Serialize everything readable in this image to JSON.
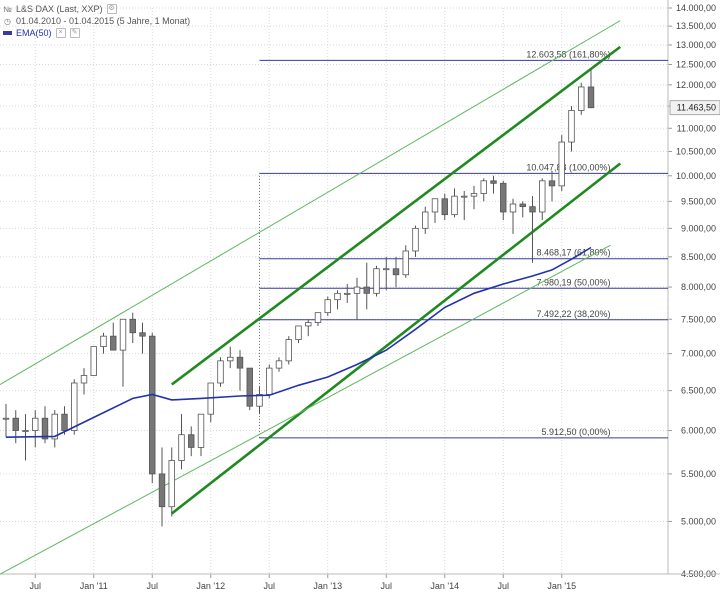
{
  "legend": {
    "instrument": "L&S DAX (Last, XXP)",
    "period": "01.04.2010 - 01.04.2015 (5 Jahre, 1 Monat)",
    "indicator": "EMA(50)",
    "symbol_icon": "instrument-icon",
    "calendar_icon": "calendar-icon",
    "settings_icon": "gear-icon",
    "close_icon": "close-icon",
    "edit_icon": "pencil-icon"
  },
  "colors": {
    "candle_up_fill": "#ffffff",
    "candle_down_fill": "#777777",
    "candle_stroke": "#555555",
    "ema": "#2233aa",
    "trend_thick": "#1f8a1f",
    "trend_thin": "#5cb85c",
    "fib_lines": "#3a3a9a",
    "grid": "#d9d9d9",
    "price_tag_bg": "#f2f2f2"
  },
  "chart_data": {
    "type": "candlestick",
    "scale": "log",
    "ylim": [
      4500,
      14000
    ],
    "y_ticks": [
      4500,
      5000,
      5500,
      6000,
      6500,
      7000,
      7500,
      8000,
      8500,
      9000,
      9500,
      10000,
      10500,
      11000,
      11500,
      12000,
      12500,
      13000,
      13500,
      14000
    ],
    "y_tick_labels": [
      "4.500,00",
      "5.000,00",
      "5.500,00",
      "6.000,00",
      "6.500,00",
      "7.000,00",
      "7.500,00",
      "8.000,00",
      "8.500,00",
      "9.000,00",
      "9.500,00",
      "10.000,00",
      "10.500,00",
      "11.000,00",
      "11.500,00",
      "12.000,00",
      "12.500,00",
      "13.000,00",
      "13.500,00",
      "14.000,00"
    ],
    "x_ticks": [
      {
        "label": "Jul",
        "index": 3
      },
      {
        "label": "Jan '11",
        "index": 9
      },
      {
        "label": "Jul",
        "index": 15
      },
      {
        "label": "Jan '12",
        "index": 21
      },
      {
        "label": "Jul",
        "index": 27
      },
      {
        "label": "Jan '13",
        "index": 33
      },
      {
        "label": "Jul",
        "index": 39
      },
      {
        "label": "Jan '14",
        "index": 45
      },
      {
        "label": "Jul",
        "index": 51
      },
      {
        "label": "Jan '15",
        "index": 57
      }
    ],
    "candles": [
      {
        "o": 6150,
        "h": 6330,
        "l": 5920,
        "c": 6150
      },
      {
        "o": 6150,
        "h": 6250,
        "l": 5850,
        "c": 6000
      },
      {
        "o": 6000,
        "h": 6200,
        "l": 5650,
        "c": 6000
      },
      {
        "o": 6000,
        "h": 6250,
        "l": 5800,
        "c": 6150
      },
      {
        "o": 6150,
        "h": 6300,
        "l": 5850,
        "c": 5900
      },
      {
        "o": 5900,
        "h": 6250,
        "l": 5800,
        "c": 6200
      },
      {
        "o": 6200,
        "h": 6300,
        "l": 5950,
        "c": 6000
      },
      {
        "o": 6000,
        "h": 6650,
        "l": 5950,
        "c": 6600
      },
      {
        "o": 6600,
        "h": 6800,
        "l": 6450,
        "c": 6700
      },
      {
        "o": 6700,
        "h": 7100,
        "l": 6750,
        "c": 7100
      },
      {
        "o": 7100,
        "h": 7300,
        "l": 7000,
        "c": 7250
      },
      {
        "o": 7250,
        "h": 7450,
        "l": 7050,
        "c": 7050
      },
      {
        "o": 7050,
        "h": 7500,
        "l": 6550,
        "c": 7500
      },
      {
        "o": 7500,
        "h": 7600,
        "l": 7150,
        "c": 7300
      },
      {
        "o": 7300,
        "h": 7450,
        "l": 7000,
        "c": 7250
      },
      {
        "o": 7250,
        "h": 7300,
        "l": 5400,
        "c": 5500
      },
      {
        "o": 5500,
        "h": 5800,
        "l": 4950,
        "c": 5150
      },
      {
        "o": 5150,
        "h": 5800,
        "l": 5050,
        "c": 5650
      },
      {
        "o": 5650,
        "h": 6200,
        "l": 5550,
        "c": 5950
      },
      {
        "o": 5950,
        "h": 6050,
        "l": 5700,
        "c": 5800
      },
      {
        "o": 5800,
        "h": 6200,
        "l": 5700,
        "c": 6200
      },
      {
        "o": 6200,
        "h": 6600,
        "l": 6100,
        "c": 6600
      },
      {
        "o": 6600,
        "h": 6950,
        "l": 6550,
        "c": 6900
      },
      {
        "o": 6900,
        "h": 7100,
        "l": 6800,
        "c": 6950
      },
      {
        "o": 6950,
        "h": 7050,
        "l": 6500,
        "c": 6800
      },
      {
        "o": 6800,
        "h": 6800,
        "l": 6250,
        "c": 6300
      },
      {
        "o": 6300,
        "h": 6550,
        "l": 6200,
        "c": 6450
      },
      {
        "o": 6450,
        "h": 6850,
        "l": 6400,
        "c": 6800
      },
      {
        "o": 6800,
        "h": 6950,
        "l": 6750,
        "c": 6900
      },
      {
        "o": 6900,
        "h": 7250,
        "l": 6850,
        "c": 7200
      },
      {
        "o": 7200,
        "h": 7400,
        "l": 7150,
        "c": 7400
      },
      {
        "o": 7400,
        "h": 7500,
        "l": 7250,
        "c": 7450
      },
      {
        "o": 7450,
        "h": 7600,
        "l": 7400,
        "c": 7600
      },
      {
        "o": 7600,
        "h": 7850,
        "l": 7550,
        "c": 7800
      },
      {
        "o": 7800,
        "h": 7950,
        "l": 7650,
        "c": 7900
      },
      {
        "o": 7900,
        "h": 8050,
        "l": 7750,
        "c": 7900
      },
      {
        "o": 7900,
        "h": 8150,
        "l": 7500,
        "c": 8000
      },
      {
        "o": 8000,
        "h": 8400,
        "l": 7650,
        "c": 7900
      },
      {
        "o": 7900,
        "h": 8350,
        "l": 7850,
        "c": 8300
      },
      {
        "o": 8300,
        "h": 8500,
        "l": 7950,
        "c": 8300
      },
      {
        "o": 8300,
        "h": 8500,
        "l": 8000,
        "c": 8200
      },
      {
        "o": 8200,
        "h": 8700,
        "l": 8150,
        "c": 8600
      },
      {
        "o": 8600,
        "h": 9050,
        "l": 8500,
        "c": 9000
      },
      {
        "o": 9000,
        "h": 9400,
        "l": 8900,
        "c": 9300
      },
      {
        "o": 9300,
        "h": 9550,
        "l": 9100,
        "c": 9550
      },
      {
        "o": 9550,
        "h": 9650,
        "l": 9150,
        "c": 9250
      },
      {
        "o": 9250,
        "h": 9750,
        "l": 9200,
        "c": 9600
      },
      {
        "o": 9600,
        "h": 9700,
        "l": 9150,
        "c": 9600
      },
      {
        "o": 9600,
        "h": 9800,
        "l": 9350,
        "c": 9650
      },
      {
        "o": 9650,
        "h": 9950,
        "l": 9500,
        "c": 9900
      },
      {
        "o": 9900,
        "h": 10000,
        "l": 9650,
        "c": 9850
      },
      {
        "o": 9850,
        "h": 9900,
        "l": 9150,
        "c": 9300
      },
      {
        "o": 9300,
        "h": 9550,
        "l": 8900,
        "c": 9450
      },
      {
        "o": 9450,
        "h": 9500,
        "l": 9200,
        "c": 9400
      },
      {
        "o": 9400,
        "h": 9600,
        "l": 8400,
        "c": 9300
      },
      {
        "o": 9300,
        "h": 9950,
        "l": 9150,
        "c": 9900
      },
      {
        "o": 9900,
        "h": 10100,
        "l": 9500,
        "c": 9800
      },
      {
        "o": 9800,
        "h": 10850,
        "l": 9700,
        "c": 10700
      },
      {
        "o": 10700,
        "h": 11500,
        "l": 10500,
        "c": 11400
      },
      {
        "o": 11400,
        "h": 12050,
        "l": 11300,
        "c": 11950
      },
      {
        "o": 11950,
        "h": 12375,
        "l": 11450,
        "c": 11463
      }
    ],
    "ema": [
      {
        "i": 0,
        "v": 5920
      },
      {
        "i": 5,
        "v": 5930
      },
      {
        "i": 9,
        "v": 6160
      },
      {
        "i": 13,
        "v": 6400
      },
      {
        "i": 15,
        "v": 6450
      },
      {
        "i": 17,
        "v": 6380
      },
      {
        "i": 20,
        "v": 6400
      },
      {
        "i": 24,
        "v": 6430
      },
      {
        "i": 27,
        "v": 6440
      },
      {
        "i": 30,
        "v": 6570
      },
      {
        "i": 33,
        "v": 6680
      },
      {
        "i": 36,
        "v": 6850
      },
      {
        "i": 39,
        "v": 7050
      },
      {
        "i": 42,
        "v": 7350
      },
      {
        "i": 45,
        "v": 7680
      },
      {
        "i": 48,
        "v": 7900
      },
      {
        "i": 51,
        "v": 8050
      },
      {
        "i": 54,
        "v": 8180
      },
      {
        "i": 56,
        "v": 8280
      },
      {
        "i": 58,
        "v": 8460
      },
      {
        "i": 60,
        "v": 8660
      }
    ],
    "trendlines": [
      {
        "style": "thick",
        "from": {
          "i": 17,
          "v": 6580
        },
        "to": {
          "i": 63,
          "v": 12950
        }
      },
      {
        "style": "thick",
        "from": {
          "i": 17,
          "v": 5080
        },
        "to": {
          "i": 63,
          "v": 10250
        }
      },
      {
        "style": "thin",
        "from": {
          "i": -1,
          "v": 6550
        },
        "to": {
          "i": 63,
          "v": 13650
        }
      },
      {
        "style": "thin",
        "from": {
          "i": -1,
          "v": 4480
        },
        "to": {
          "i": 62,
          "v": 8700
        }
      }
    ],
    "fibonacci": {
      "start_index": 26,
      "end_index": 62,
      "anchor_index": 26,
      "anchor_from": 5912.5,
      "anchor_to": 10047.88,
      "levels": [
        {
          "value": 12603.58,
          "label": "12.603,58 (161,80%)"
        },
        {
          "value": 10047.88,
          "label": "10.047,88 (100,00%)"
        },
        {
          "value": 8468.17,
          "label": "8.468,17 (61,80%)"
        },
        {
          "value": 7980.19,
          "label": "7.980,19 (50,00%)"
        },
        {
          "value": 7492.22,
          "label": "7.492,22 (38,20%)"
        },
        {
          "value": 5912.5,
          "label": "5.912,50 (0,00%)"
        }
      ]
    },
    "last_price": {
      "value": 11463.5,
      "label": "11.463,50"
    }
  }
}
